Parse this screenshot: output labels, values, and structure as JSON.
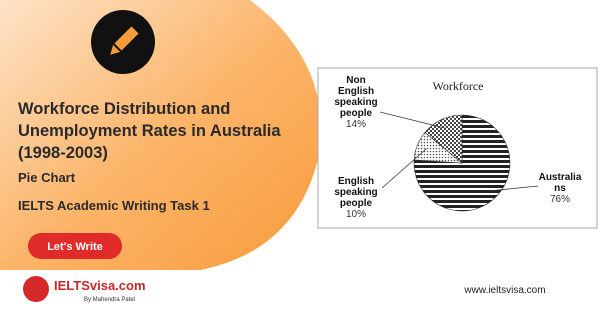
{
  "header": {
    "title_lines": [
      "Workforce Distribution and",
      "Unemployment Rates in Australia",
      "(1998-2003)"
    ],
    "subtitle": "Pie Chart",
    "task": "IELTS Academic Writing Task 1"
  },
  "button": "Let's Write",
  "logo": {
    "name": "IELTSvisa.com",
    "byline": "By Mahendra Patel"
  },
  "website": "www.ieltsvisa.com",
  "chart_data": {
    "type": "pie",
    "title": "Workforce",
    "categories": [
      [
        "Non",
        "English",
        "speaking",
        "people"
      ],
      [
        "English",
        "speaking",
        "people"
      ],
      [
        "Australia",
        "ns"
      ]
    ],
    "values": [
      14,
      10,
      76
    ],
    "value_labels": [
      "14%",
      "10%",
      "76%"
    ],
    "colors": [
      "#444444",
      "#555555",
      "#222222"
    ]
  }
}
